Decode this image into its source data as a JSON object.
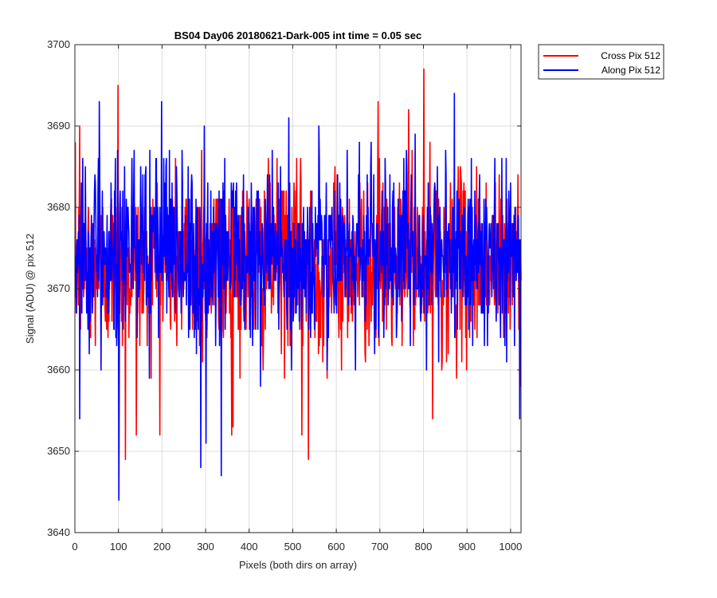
{
  "chart_data": {
    "type": "line",
    "title": "BS04 Day06 20180621-Dark-005 int time = 0.05 sec",
    "xlabel": "Pixels (both dirs on array)",
    "ylabel": "Signal (ADU) @ pix 512",
    "xlim": [
      0,
      1024
    ],
    "ylim": [
      3640,
      3700
    ],
    "xticks": [
      0,
      100,
      200,
      300,
      400,
      500,
      600,
      700,
      800,
      900,
      1000
    ],
    "yticks": [
      3640,
      3650,
      3660,
      3670,
      3680,
      3690,
      3700
    ],
    "xtick_labels": [
      "0",
      "100",
      "200",
      "300",
      "400",
      "500",
      "600",
      "700",
      "800",
      "900",
      "1000"
    ],
    "ytick_labels": [
      "3640",
      "3650",
      "3660",
      "3670",
      "3680",
      "3690",
      "3700"
    ],
    "grid": true,
    "legend_position": "outside-top-right",
    "x_points": 1024,
    "series": [
      {
        "name": "Cross Pix 512",
        "color": "#ff0000",
        "approx_mean": 3673,
        "approx_range": [
          3649,
          3697
        ],
        "notable_points": [
          {
            "x": 10,
            "y": 3690
          },
          {
            "x": 98,
            "y": 3695
          },
          {
            "x": 115,
            "y": 3649
          },
          {
            "x": 140,
            "y": 3652
          },
          {
            "x": 290,
            "y": 3687
          },
          {
            "x": 362,
            "y": 3653
          },
          {
            "x": 520,
            "y": 3652
          },
          {
            "x": 535,
            "y": 3649
          },
          {
            "x": 695,
            "y": 3693
          },
          {
            "x": 765,
            "y": 3692
          },
          {
            "x": 800,
            "y": 3697
          },
          {
            "x": 820,
            "y": 3654
          }
        ]
      },
      {
        "name": "Along Pix 512",
        "color": "#0000ff",
        "approx_mean": 3674,
        "approx_range": [
          3644,
          3694
        ],
        "notable_points": [
          {
            "x": 10,
            "y": 3654
          },
          {
            "x": 55,
            "y": 3693
          },
          {
            "x": 100,
            "y": 3644
          },
          {
            "x": 198,
            "y": 3693
          },
          {
            "x": 288,
            "y": 3648
          },
          {
            "x": 300,
            "y": 3651
          },
          {
            "x": 335,
            "y": 3647
          },
          {
            "x": 490,
            "y": 3691
          },
          {
            "x": 870,
            "y": 3694
          },
          {
            "x": 1020,
            "y": 3654
          }
        ]
      }
    ]
  }
}
